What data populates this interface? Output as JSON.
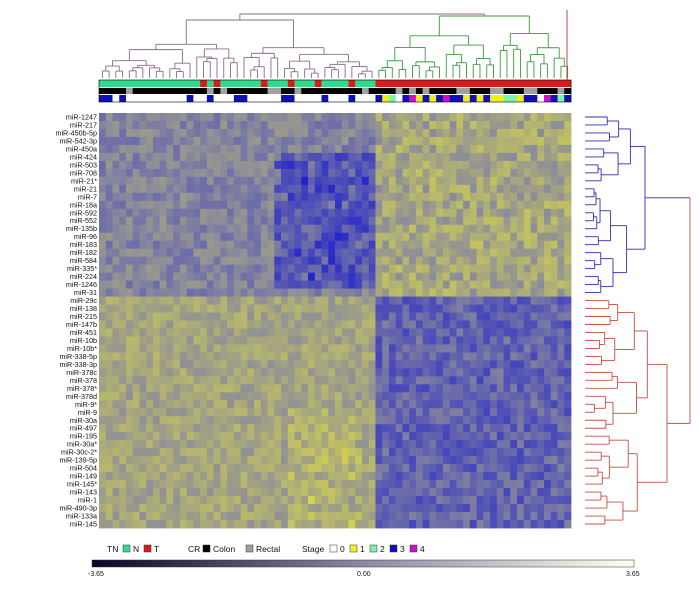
{
  "chart_data": {
    "type": "heatmap",
    "rows": [
      "miR-1247",
      "miR-217",
      "miR-450b-5p",
      "miR-542-3p",
      "miR-450a",
      "miR-424",
      "miR-503",
      "miR-708",
      "miR-21*",
      "miR-21",
      "miR-7",
      "miR-18a",
      "miR-592",
      "miR-552",
      "miR-135b",
      "miR-96",
      "miR-183",
      "miR-182",
      "miR-584",
      "miR-335*",
      "miR-224",
      "miR-1246",
      "miR-31",
      "miR-29c",
      "miR-138",
      "miR-215",
      "miR-147b",
      "miR-451",
      "miR-10b",
      "miR-10b*",
      "miR-338-5p",
      "miR-338-3p",
      "miR-378c",
      "miR-378",
      "miR-378*",
      "miR-378d",
      "miR-9*",
      "miR-9",
      "miR-30a",
      "miR-497",
      "miR-195",
      "miR-30a*",
      "miR-30c-2*",
      "miR-139-5p",
      "miR-504",
      "miR-149",
      "miR-145*",
      "miR-143",
      "miR-1",
      "miR-490-3p",
      "miR-133a",
      "miR-145"
    ],
    "n_samples": 70,
    "n_normal": 41,
    "row_cluster_split": 23,
    "color_scale": {
      "min": -3.65,
      "mid": 0.0,
      "max": 3.65,
      "low_color": "#1c1ccf",
      "mid_color": "#8a8a9c",
      "high_color": "#e8e83a"
    },
    "annotations": {
      "tn": {
        "label": "TN",
        "items": [
          {
            "label": "N",
            "color": "#2edc8c"
          },
          {
            "label": "T",
            "color": "#dd1a1a"
          }
        ]
      },
      "cr": {
        "label": "CR",
        "items": [
          {
            "label": "Colon",
            "color": "#000000"
          },
          {
            "label": "Rectal",
            "color": "#a0a0a0"
          }
        ]
      },
      "stage": {
        "label": "Stage",
        "items": [
          {
            "label": "0",
            "color": "#ffffff"
          },
          {
            "label": "1",
            "color": "#f0f018"
          },
          {
            "label": "2",
            "color": "#7ef0a8"
          },
          {
            "label": "3",
            "color": "#1010b8"
          },
          {
            "label": "4",
            "color": "#d010c8"
          }
        ]
      }
    },
    "scale_labels": [
      "-3.65",
      "0.00",
      "3.65"
    ],
    "dendrogram_colors": {
      "col_normal": "#8a6a8a",
      "col_tumor": "#3a9a3a",
      "row_top": "#3030a8",
      "row_bottom": "#c05040"
    }
  }
}
